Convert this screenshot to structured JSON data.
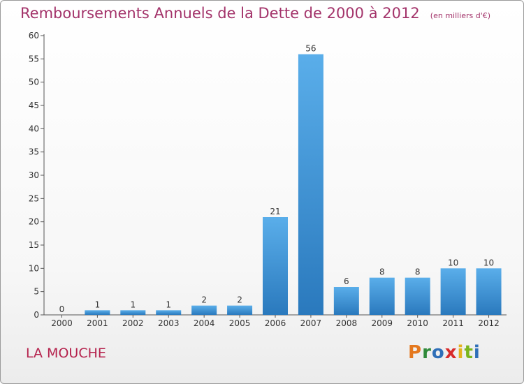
{
  "header": {
    "title": "Remboursements Annuels de la Dette de 2000 à 2012",
    "unit": "(en milliers d'€)"
  },
  "footer": {
    "place": "LA MOUCHE",
    "logo_text": "Proxiti",
    "logo_colors": [
      "#e4781e",
      "#2f8a3a",
      "#2f6fb8",
      "#d82b2b",
      "#e4b21e",
      "#7ab51d",
      "#2f6fb8"
    ]
  },
  "colors": {
    "bar_top": "#5aaeea",
    "bar_bottom": "#2a79bd",
    "title": "#a3336a",
    "place": "#b5224d"
  },
  "chart_data": {
    "type": "bar",
    "categories": [
      "2000",
      "2001",
      "2002",
      "2003",
      "2004",
      "2005",
      "2006",
      "2007",
      "2008",
      "2009",
      "2010",
      "2011",
      "2012"
    ],
    "values": [
      0,
      1,
      1,
      1,
      2,
      2,
      21,
      56,
      6,
      8,
      8,
      10,
      10
    ],
    "data_labels": [
      "0",
      "1",
      "1",
      "1",
      "2",
      "2",
      "21",
      "56",
      "6",
      "8",
      "8",
      "10",
      "10"
    ],
    "title": "Remboursements Annuels de la Dette de 2000 à 2012",
    "ylim": [
      0,
      60
    ],
    "yticks": [
      0,
      5,
      10,
      15,
      20,
      25,
      30,
      35,
      40,
      45,
      50,
      55,
      60
    ],
    "grid": false
  }
}
